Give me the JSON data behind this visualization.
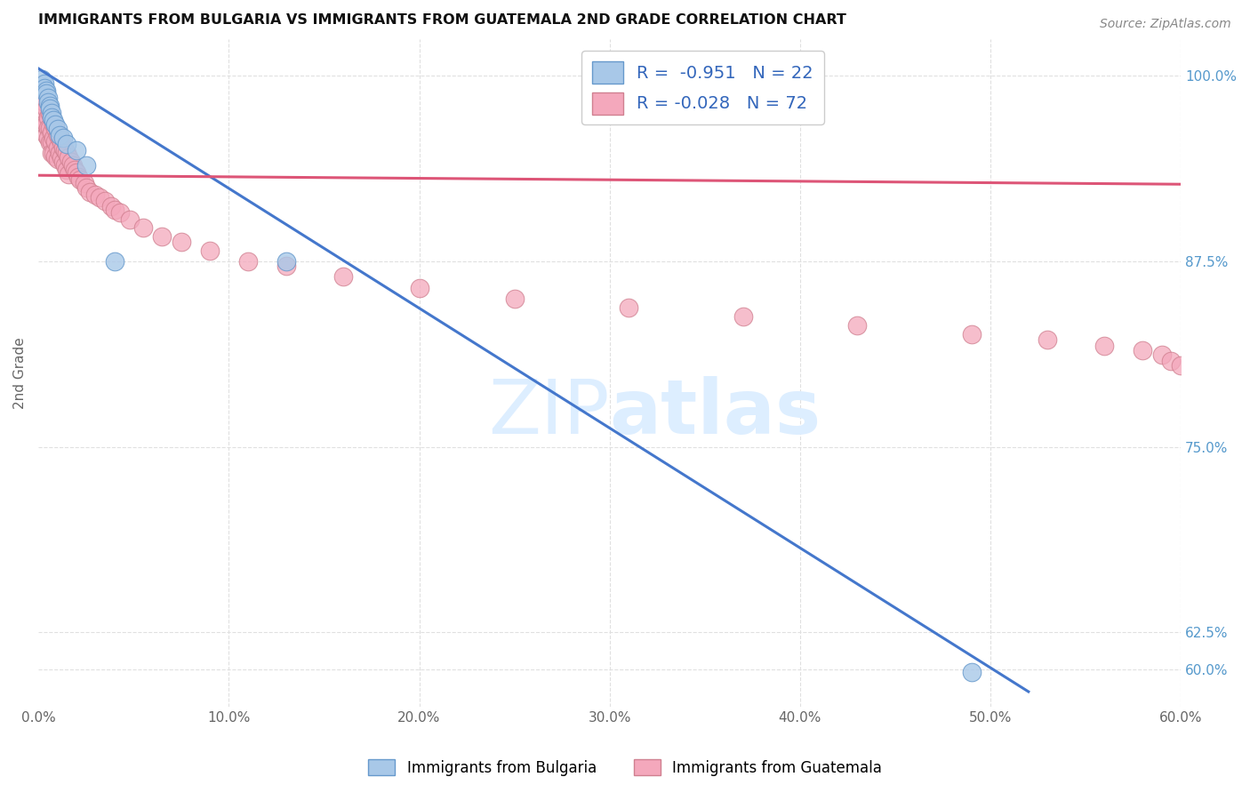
{
  "title": "IMMIGRANTS FROM BULGARIA VS IMMIGRANTS FROM GUATEMALA 2ND GRADE CORRELATION CHART",
  "source": "Source: ZipAtlas.com",
  "ylabel": "2nd Grade",
  "xlim": [
    0.0,
    0.6
  ],
  "ylim": [
    0.575,
    1.025
  ],
  "background_color": "#ffffff",
  "grid_color": "#e0e0e0",
  "watermark_color": "#ddeeff",
  "legend_r1": "R =  -0.951",
  "legend_n1": "N = 22",
  "legend_r2": "R = -0.028",
  "legend_n2": "N = 72",
  "color_bulgaria": "#a8c8e8",
  "color_guatemala": "#f4a8bc",
  "trendline_bulgaria_color": "#4477cc",
  "trendline_guatemala_color": "#dd5577",
  "bulgaria_x": [
    0.002,
    0.003,
    0.003,
    0.004,
    0.004,
    0.005,
    0.005,
    0.006,
    0.006,
    0.007,
    0.007,
    0.008,
    0.009,
    0.01,
    0.011,
    0.013,
    0.015,
    0.02,
    0.025,
    0.04,
    0.13,
    0.49
  ],
  "bulgaria_y": [
    0.998,
    0.995,
    0.992,
    0.99,
    0.988,
    0.985,
    0.982,
    0.98,
    0.978,
    0.975,
    0.972,
    0.97,
    0.967,
    0.964,
    0.96,
    0.958,
    0.954,
    0.95,
    0.94,
    0.875,
    0.875,
    0.598
  ],
  "bul_line_x": [
    0.0,
    0.52
  ],
  "bul_line_y": [
    1.005,
    0.585
  ],
  "guat_line_x": [
    0.0,
    0.6
  ],
  "guat_line_y": [
    0.933,
    0.927
  ],
  "guatemala_x": [
    0.002,
    0.003,
    0.003,
    0.004,
    0.004,
    0.004,
    0.005,
    0.005,
    0.005,
    0.006,
    0.006,
    0.006,
    0.007,
    0.007,
    0.007,
    0.007,
    0.008,
    0.008,
    0.008,
    0.009,
    0.009,
    0.009,
    0.01,
    0.01,
    0.01,
    0.011,
    0.011,
    0.012,
    0.012,
    0.013,
    0.013,
    0.014,
    0.014,
    0.015,
    0.015,
    0.016,
    0.016,
    0.017,
    0.018,
    0.019,
    0.02,
    0.021,
    0.022,
    0.024,
    0.025,
    0.027,
    0.03,
    0.032,
    0.035,
    0.038,
    0.04,
    0.043,
    0.048,
    0.055,
    0.065,
    0.075,
    0.09,
    0.11,
    0.13,
    0.16,
    0.2,
    0.25,
    0.31,
    0.37,
    0.43,
    0.49,
    0.53,
    0.56,
    0.58,
    0.59,
    0.595,
    0.6
  ],
  "guatemala_y": [
    0.975,
    0.982,
    0.968,
    0.978,
    0.968,
    0.96,
    0.972,
    0.965,
    0.958,
    0.975,
    0.965,
    0.955,
    0.972,
    0.962,
    0.955,
    0.948,
    0.968,
    0.958,
    0.948,
    0.965,
    0.956,
    0.946,
    0.96,
    0.952,
    0.944,
    0.958,
    0.948,
    0.955,
    0.945,
    0.952,
    0.942,
    0.95,
    0.94,
    0.948,
    0.937,
    0.945,
    0.934,
    0.942,
    0.94,
    0.937,
    0.935,
    0.932,
    0.93,
    0.928,
    0.925,
    0.922,
    0.92,
    0.918,
    0.916,
    0.912,
    0.91,
    0.908,
    0.903,
    0.898,
    0.892,
    0.888,
    0.882,
    0.875,
    0.872,
    0.865,
    0.857,
    0.85,
    0.844,
    0.838,
    0.832,
    0.826,
    0.822,
    0.818,
    0.815,
    0.812,
    0.808,
    0.805
  ]
}
